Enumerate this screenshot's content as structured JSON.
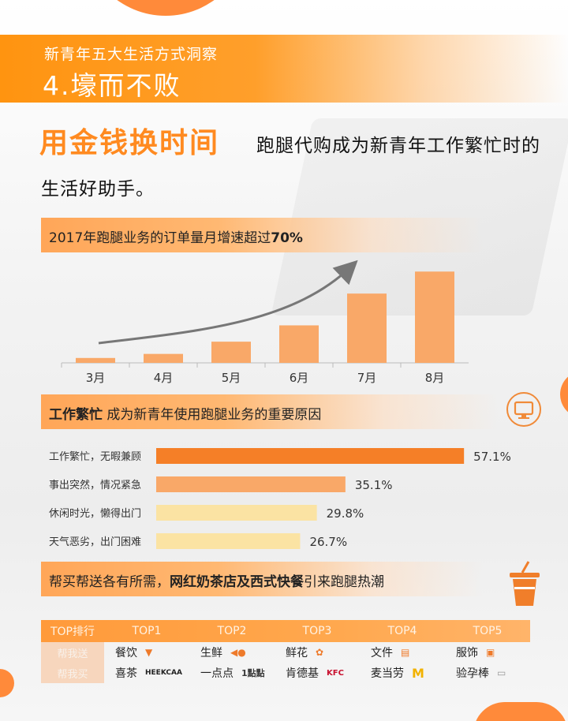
{
  "header": {
    "subtitle": "新青年五大生活方式洞察",
    "title": "4.壕而不败"
  },
  "headline": {
    "main": "用金钱换时间",
    "desc_line1": "跑腿代购成为新青年工作繁忙时的",
    "desc_line2": "生活好助手。"
  },
  "section1": {
    "text_prefix": "2017年跑腿业务的订单量月增速超过",
    "text_bold": "70%"
  },
  "section2": {
    "text_bold": "工作繁忙",
    "text_rest": "成为新青年使用跑腿业务的重要原因"
  },
  "section3": {
    "text_prefix": "帮买帮送各有所需，",
    "text_bold": "网红奶茶店及西式快餐",
    "text_suffix": "引来跑腿热潮"
  },
  "colors": {
    "accent": "#ff8a20",
    "bar_dark": "#f57f27",
    "bar_mid": "#f9a868",
    "bar_light": "#fbe3a3"
  },
  "chart_data": [
    {
      "type": "bar",
      "categories": [
        "3月",
        "4月",
        "5月",
        "6月",
        "7月",
        "8月"
      ],
      "values": [
        6,
        11,
        26,
        46,
        85,
        112
      ],
      "ylim": [
        0,
        120
      ],
      "title": "",
      "xlabel": "",
      "ylabel": "",
      "trend_arrow": true
    },
    {
      "type": "bar",
      "orientation": "horizontal",
      "categories": [
        "工作繁忙，无暇兼顾",
        "事出突然，情况紧急",
        "休闲时光，懒得出门",
        "天气恶劣，出门困难"
      ],
      "values": [
        57.1,
        35.1,
        29.8,
        26.7
      ],
      "value_labels": [
        "57.1%",
        "35.1%",
        "29.8%",
        "26.7%"
      ],
      "xlim": [
        0,
        60
      ]
    }
  ],
  "table": {
    "header": [
      "TOP排行",
      "TOP1",
      "TOP2",
      "TOP3",
      "TOP4",
      "TOP5"
    ],
    "rows": [
      {
        "label": "帮我送",
        "cells": [
          {
            "text": "餐饮",
            "icon": "food-cloche-icon"
          },
          {
            "text": "生鲜",
            "icon": "fish-icon"
          },
          {
            "text": "鲜花",
            "icon": "flower-icon"
          },
          {
            "text": "文件",
            "icon": "document-icon"
          },
          {
            "text": "服饰",
            "icon": "shirt-icon"
          }
        ]
      },
      {
        "label": "帮我买",
        "cells": [
          {
            "text": "喜茶",
            "icon": "heekcaa-logo",
            "logo_text": "HEEKCAA"
          },
          {
            "text": "一点点",
            "icon": "yidiandian-logo",
            "logo_text": "1點點"
          },
          {
            "text": "肯德基",
            "icon": "kfc-logo",
            "logo_text": "KFC"
          },
          {
            "text": "麦当劳",
            "icon": "mcdonalds-logo",
            "logo_text": "M"
          },
          {
            "text": "验孕棒",
            "icon": "pregnancy-test-icon"
          }
        ]
      }
    ]
  }
}
